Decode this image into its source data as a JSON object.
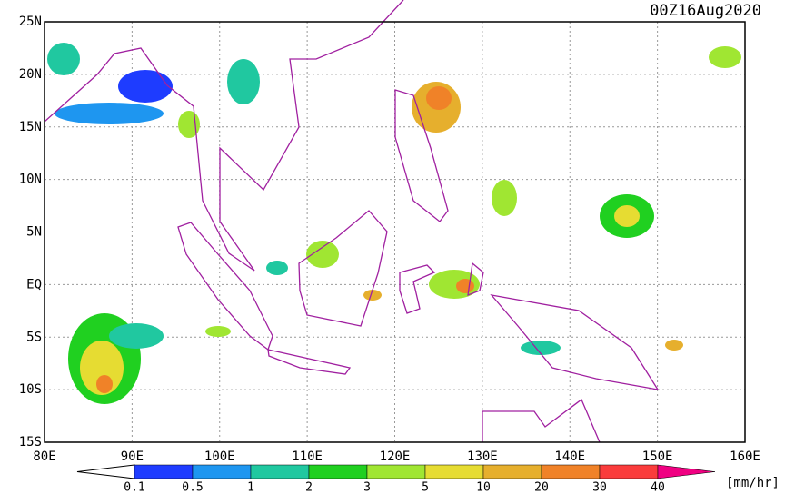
{
  "title": "00Z16Aug2020",
  "map": {
    "lat_labels": [
      "25N",
      "20N",
      "15N",
      "10N",
      "5N",
      "EQ",
      "5S",
      "10S",
      "15S"
    ],
    "lon_labels": [
      "80E",
      "90E",
      "100E",
      "110E",
      "120E",
      "130E",
      "140E",
      "150E",
      "160E"
    ]
  },
  "colorbar": {
    "labels": [
      "0.1",
      "0.5",
      "1",
      "2",
      "3",
      "5",
      "10",
      "20",
      "30",
      "40"
    ],
    "colors": [
      "#1e3cff",
      "#1e96f0",
      "#20c8a0",
      "#20d020",
      "#a0e632",
      "#e6dc32",
      "#e6af2d",
      "#f08228",
      "#fa3c3c",
      "#f00082"
    ],
    "unit": "[mm/hr]"
  }
}
